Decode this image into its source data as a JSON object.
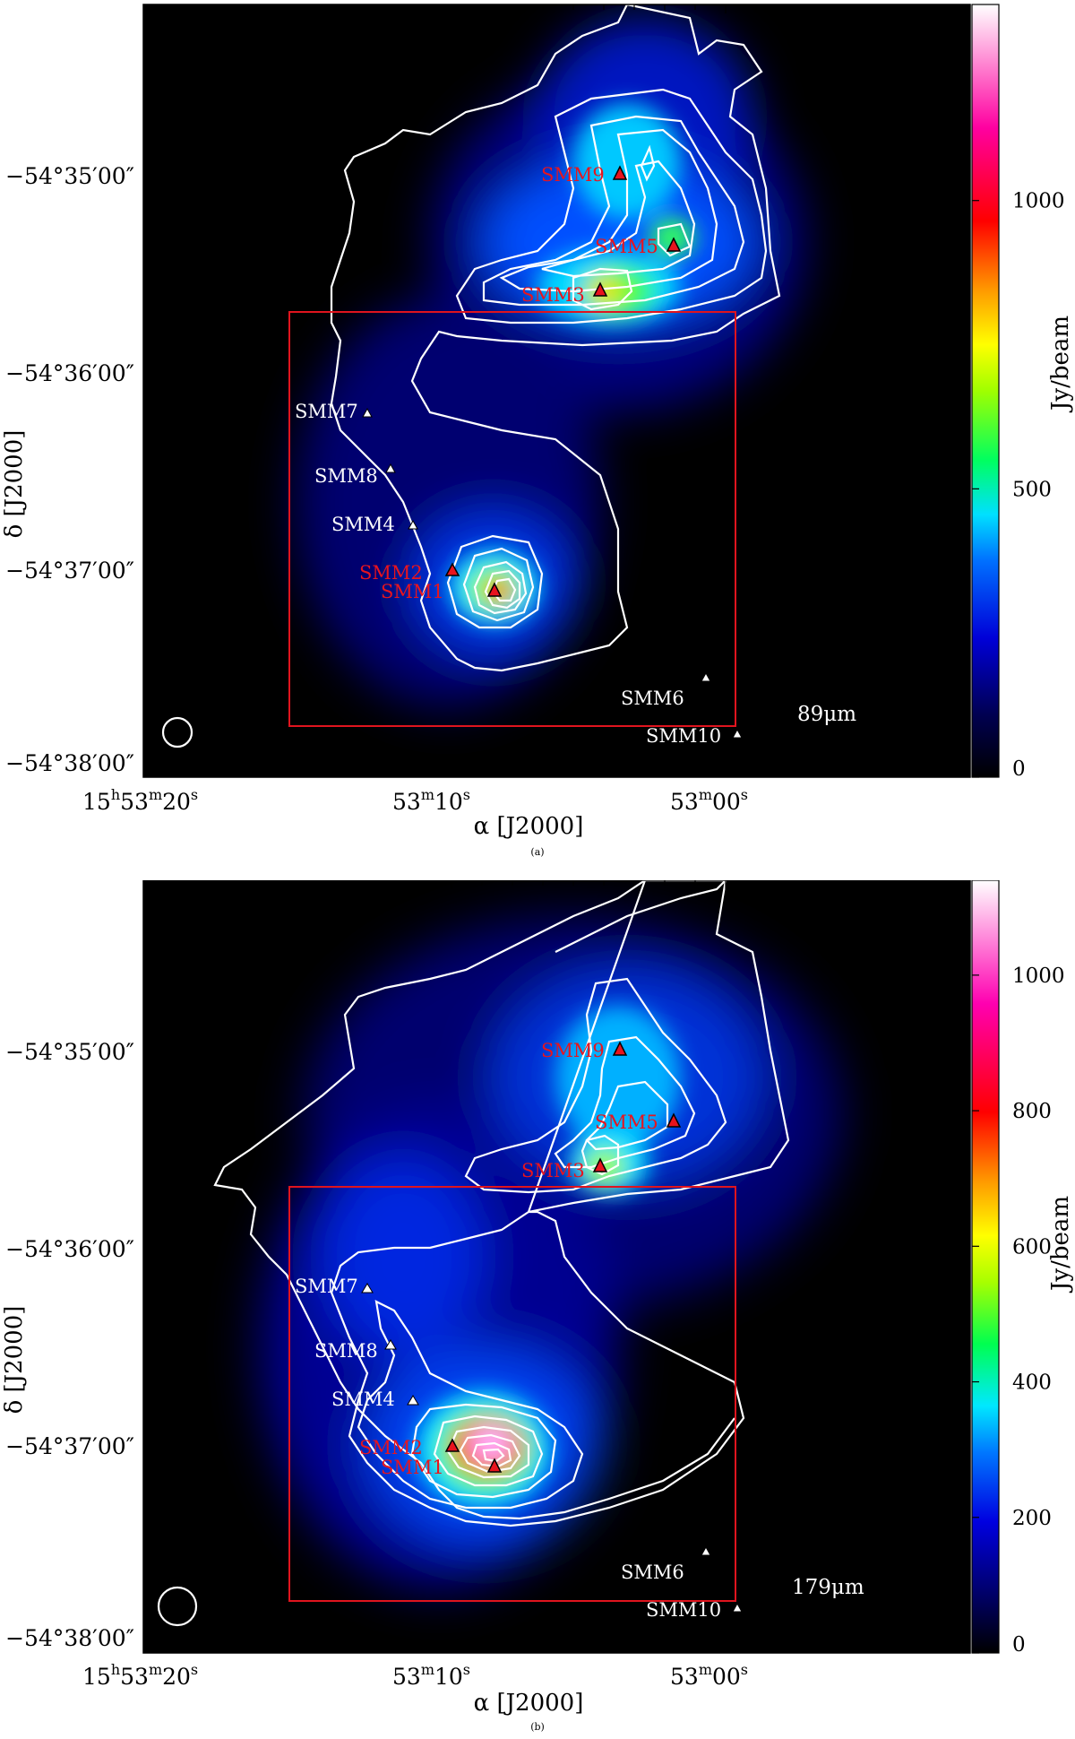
{
  "panels": [
    {
      "id": "a",
      "caption": "(a)",
      "wavelength_label": "89μm",
      "x_axis_title": "α [J2000]",
      "y_axis_title": "δ [J2000]",
      "colorbar_title": "Jy/beam",
      "colorbar_ticks": [
        "0",
        "500",
        "1000"
      ],
      "colorbar_max": 1340,
      "x_ticks": [
        {
          "label_main": "15",
          "h": "h",
          "mid": "53",
          "m": "m",
          "sec": "20",
          "s": "s"
        },
        {
          "label_main": "",
          "mid": "53",
          "m": "m",
          "sec": "10",
          "s": "s"
        },
        {
          "label_main": "",
          "mid": "53",
          "m": "m",
          "sec": "00",
          "s": "s"
        }
      ],
      "y_ticks": [
        "−54°35′00″",
        "−54°36′00″",
        "−54°37′00″",
        "−54°38′00″"
      ],
      "sources": [
        {
          "name": "SMM9",
          "color": "red"
        },
        {
          "name": "SMM5",
          "color": "red"
        },
        {
          "name": "SMM3",
          "color": "red"
        },
        {
          "name": "SMM7",
          "color": "white"
        },
        {
          "name": "SMM8",
          "color": "white"
        },
        {
          "name": "SMM4",
          "color": "white"
        },
        {
          "name": "SMM2",
          "color": "red"
        },
        {
          "name": "SMM1",
          "color": "red"
        },
        {
          "name": "SMM6",
          "color": "white"
        },
        {
          "name": "SMM10",
          "color": "white"
        }
      ]
    },
    {
      "id": "b",
      "caption": "(b)",
      "wavelength_label": "179μm",
      "x_axis_title": "α [J2000]",
      "y_axis_title": "δ [J2000]",
      "colorbar_title": "Jy/beam",
      "colorbar_ticks": [
        "0",
        "200",
        "400",
        "600",
        "800",
        "1000"
      ],
      "colorbar_max": 1140,
      "x_ticks": [
        {
          "label_main": "15",
          "h": "h",
          "mid": "53",
          "m": "m",
          "sec": "20",
          "s": "s"
        },
        {
          "label_main": "",
          "mid": "53",
          "m": "m",
          "sec": "10",
          "s": "s"
        },
        {
          "label_main": "",
          "mid": "53",
          "m": "m",
          "sec": "00",
          "s": "s"
        }
      ],
      "y_ticks": [
        "−54°35′00″",
        "−54°36′00″",
        "−54°37′00″",
        "−54°38′00″"
      ],
      "sources": [
        {
          "name": "SMM9",
          "color": "red"
        },
        {
          "name": "SMM5",
          "color": "red"
        },
        {
          "name": "SMM3",
          "color": "red"
        },
        {
          "name": "SMM7",
          "color": "white"
        },
        {
          "name": "SMM8",
          "color": "white"
        },
        {
          "name": "SMM4",
          "color": "white"
        },
        {
          "name": "SMM2",
          "color": "red"
        },
        {
          "name": "SMM1",
          "color": "red"
        },
        {
          "name": "SMM6",
          "color": "white"
        },
        {
          "name": "SMM10",
          "color": "white"
        }
      ]
    }
  ],
  "colors": {
    "red_label": "#e8141e",
    "white_label": "#ffffff",
    "box": "#e0141e",
    "contour": "#ffffff",
    "background": "#000000"
  }
}
